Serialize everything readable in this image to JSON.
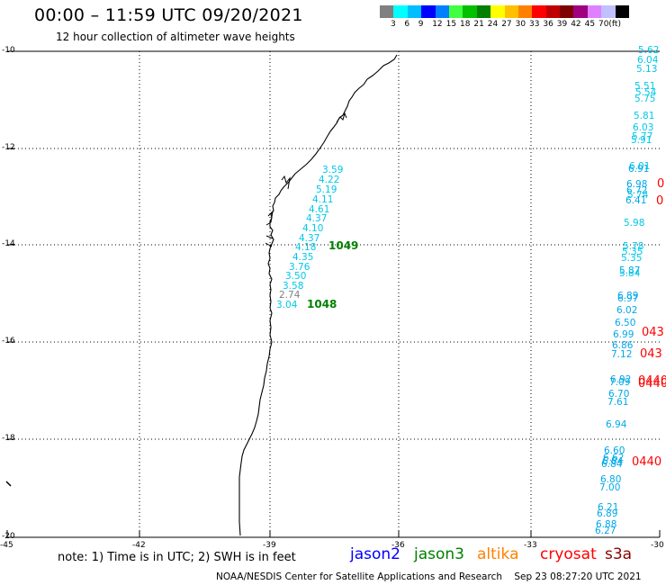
{
  "header": {
    "title": "00:00 – 11:59 UTC 09/20/2021",
    "subtitle": "12 hour collection of altimeter wave heights"
  },
  "scale": {
    "colors": [
      "#808080",
      "#00ffff",
      "#00bfff",
      "#0000ff",
      "#0080ff",
      "#40ff40",
      "#00c000",
      "#008000",
      "#ffff00",
      "#ffc000",
      "#ff8000",
      "#ff0000",
      "#c00000",
      "#800000",
      "#a00080",
      "#e080ff",
      "#c0c0ff",
      "#000000"
    ],
    "labels": [
      "3",
      "6",
      "9",
      "12",
      "15",
      "18",
      "21",
      "24",
      "27",
      "30",
      "33",
      "36",
      "39",
      "42",
      "45",
      "70",
      "(ft)"
    ]
  },
  "axes": {
    "lat_labels": [
      "-10",
      "-12",
      "-14",
      "-16",
      "-18",
      "-20"
    ],
    "lon_labels": [
      "-45",
      "-42",
      "-39",
      "-36",
      "-33",
      "-30"
    ]
  },
  "track_1049": {
    "values": [
      "3.59",
      "4.22",
      "5.19",
      "4.11",
      "4.61",
      "4.37",
      "4.10",
      "4.37",
      "4.18",
      "4.35",
      "3.76",
      "3.50",
      "3.58",
      "2.74",
      "3.04"
    ],
    "colors": [
      "#00c8e8",
      "#00c8e8",
      "#00c8e8",
      "#00c8e8",
      "#00c8e8",
      "#00c8e8",
      "#00c8e8",
      "#00c8e8",
      "#00c8e8",
      "#00c8e8",
      "#00c8e8",
      "#00c8e8",
      "#00c8e8",
      "#808080",
      "#00c8e8"
    ],
    "pass_labels": [
      "1049",
      "1048"
    ]
  },
  "track_east": {
    "values": [
      "5.62",
      "6.04",
      "5.13",
      "5.51",
      "5.54",
      "5.75",
      "5.81",
      "6.03",
      "5.77",
      "5.91",
      "6.01",
      "6.91",
      "6.98",
      "6.72",
      "5.74",
      "6.41",
      "5.98",
      "5.78",
      "5.35",
      "5.35",
      "5.87",
      "5.84",
      "6.89",
      "6.97",
      "6.02",
      "6.50",
      "6.99",
      "6.86",
      "7.12",
      "6.92",
      "7.09",
      "6.70",
      "7.61",
      "6.94",
      "6.60",
      "6.62",
      "6.84",
      "6.84",
      "6.80",
      "7.00",
      "6.21",
      "6.89",
      "6.88",
      "6.27"
    ],
    "colors": [
      "#00c8e8",
      "#00c8e8",
      "#00c8e8",
      "#00c8e8",
      "#00c8e8",
      "#00c8e8",
      "#00c8e8",
      "#00c8e8",
      "#00c8e8",
      "#00c8e8",
      "#00c8e8",
      "#00a8e8",
      "#00a8e8",
      "#00a8e8",
      "#00c8e8",
      "#00a8e8",
      "#00c8e8",
      "#00c8e8",
      "#00c8e8",
      "#00c8e8",
      "#00a8e8",
      "#00c8e8",
      "#00a8e8",
      "#00a8e8",
      "#00a8e8",
      "#00a8e8",
      "#00a8e8",
      "#00a8e8",
      "#00a8e8",
      "#00a8e8",
      "#00a8e8",
      "#00a8e8",
      "#00a8e8",
      "#00a8e8",
      "#00a8e8",
      "#00a8e8",
      "#00a8e8",
      "#00a8e8",
      "#00a8e8",
      "#00a8e8",
      "#00a8e8",
      "#00a8e8",
      "#00a8e8",
      "#00a8e8"
    ]
  },
  "edge_labels": [
    "0",
    "0",
    "043",
    "043",
    "0440",
    "0440",
    "0440"
  ],
  "footer": {
    "note": "note: 1) Time is in UTC; 2) SWH is in feet",
    "satellites": [
      {
        "name": "jason2",
        "color": "#0000ff"
      },
      {
        "name": "jason3",
        "color": "#008000"
      },
      {
        "name": "altika",
        "color": "#ff8000"
      },
      {
        "name": "cryosat",
        "color": "#ff0000"
      },
      {
        "name": "s3a",
        "color": "#8b0000"
      }
    ],
    "credit": "NOAA/NESDIS Center for Satellite Applications and Research",
    "timestamp": "Sep 23 08:27:20 UTC 2021"
  }
}
